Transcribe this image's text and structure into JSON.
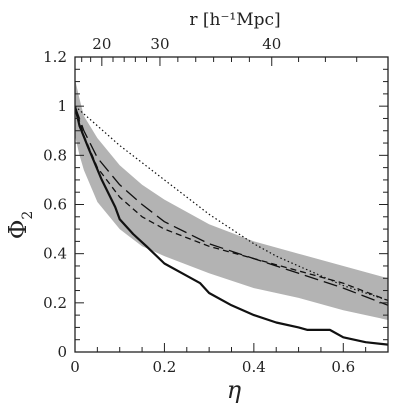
{
  "chart_data": {
    "type": "line",
    "title": "",
    "xlabel": "η",
    "ylabel": "Φ",
    "ylabel_sub": "2",
    "top_axis_label": "r [h⁻¹Mpc]",
    "xlim": [
      0,
      0.7
    ],
    "ylim": [
      0,
      1.2
    ],
    "x_ticks": [
      0,
      0.2,
      0.4,
      0.6
    ],
    "x_tick_labels": [
      "0",
      "0.2",
      "0.4",
      "0.6"
    ],
    "y_ticks": [
      0,
      0.2,
      0.4,
      0.6,
      0.8,
      1.0,
      1.2
    ],
    "y_tick_labels": [
      "0",
      "0.2",
      "0.4",
      "0.6",
      "0.8",
      "1",
      "1.2"
    ],
    "top_ticks": [
      {
        "label": "20",
        "eta": 0.06
      },
      {
        "label": "30",
        "eta": 0.19
      },
      {
        "label": "40",
        "eta": 0.44
      }
    ],
    "band": {
      "color": "#b3b3b3",
      "x": [
        0,
        0.01,
        0.02,
        0.05,
        0.1,
        0.15,
        0.2,
        0.3,
        0.4,
        0.5,
        0.6,
        0.7
      ],
      "upper": [
        1.11,
        1.03,
        0.96,
        0.87,
        0.76,
        0.68,
        0.62,
        0.52,
        0.45,
        0.4,
        0.35,
        0.3
      ],
      "lower": [
        0.88,
        0.8,
        0.74,
        0.61,
        0.5,
        0.43,
        0.39,
        0.32,
        0.26,
        0.22,
        0.17,
        0.13
      ]
    },
    "series": [
      {
        "style": "solid",
        "x": [
          0,
          0.01,
          0.03,
          0.06,
          0.09,
          0.1,
          0.13,
          0.16,
          0.2,
          0.25,
          0.28,
          0.3,
          0.35,
          0.4,
          0.45,
          0.5,
          0.52,
          0.57,
          0.6,
          0.65,
          0.7
        ],
        "y": [
          1.0,
          0.92,
          0.83,
          0.7,
          0.59,
          0.54,
          0.48,
          0.43,
          0.36,
          0.31,
          0.28,
          0.24,
          0.19,
          0.15,
          0.12,
          0.1,
          0.09,
          0.09,
          0.06,
          0.04,
          0.03
        ]
      },
      {
        "style": "long-dash",
        "x": [
          0,
          0.02,
          0.05,
          0.1,
          0.15,
          0.2,
          0.3,
          0.4,
          0.5,
          0.6,
          0.7
        ],
        "y": [
          1.0,
          0.9,
          0.79,
          0.68,
          0.6,
          0.53,
          0.44,
          0.38,
          0.32,
          0.26,
          0.19
        ]
      },
      {
        "style": "short-dash",
        "x": [
          0,
          0.02,
          0.05,
          0.1,
          0.15,
          0.2,
          0.3,
          0.4,
          0.5,
          0.6,
          0.7
        ],
        "y": [
          1.0,
          0.88,
          0.75,
          0.63,
          0.55,
          0.5,
          0.43,
          0.38,
          0.33,
          0.28,
          0.21
        ]
      },
      {
        "style": "dotted",
        "x": [
          0,
          0.05,
          0.1,
          0.15,
          0.2,
          0.25,
          0.3,
          0.35,
          0.4,
          0.45,
          0.5,
          0.55,
          0.6,
          0.65,
          0.7
        ],
        "y": [
          1.0,
          0.92,
          0.84,
          0.77,
          0.7,
          0.63,
          0.56,
          0.5,
          0.44,
          0.39,
          0.35,
          0.31,
          0.27,
          0.24,
          0.21
        ]
      }
    ]
  }
}
